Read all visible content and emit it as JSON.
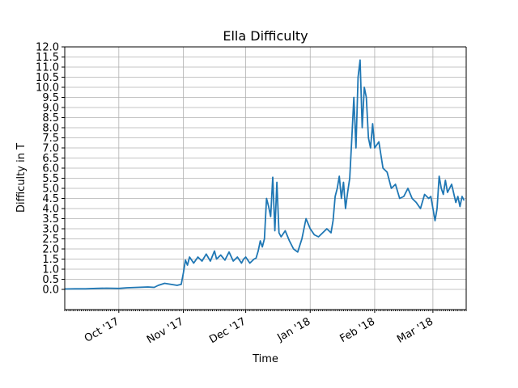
{
  "chart_data": {
    "type": "line",
    "title": "Ella Difficulty",
    "xlabel": "Time",
    "ylabel": "Difficulty in T",
    "ylim": [
      -1.0,
      12.0
    ],
    "xlim": [
      "2017-09-05",
      "2018-03-17"
    ],
    "y_ticks": [
      "0.0",
      "0.5",
      "1.0",
      "1.5",
      "2.0",
      "2.5",
      "3.0",
      "3.5",
      "4.0",
      "4.5",
      "5.0",
      "5.5",
      "6.0",
      "6.5",
      "7.0",
      "7.5",
      "8.0",
      "8.5",
      "9.0",
      "9.5",
      "10.0",
      "10.5",
      "11.0",
      "11.5",
      "12.0"
    ],
    "x_ticks": [
      {
        "date": "2017-10-01",
        "label": "Oct '17"
      },
      {
        "date": "2017-11-01",
        "label": "Nov '17"
      },
      {
        "date": "2017-12-01",
        "label": "Dec '17"
      },
      {
        "date": "2018-01-01",
        "label": "Jan '18"
      },
      {
        "date": "2018-02-01",
        "label": "Feb '18"
      },
      {
        "date": "2018-03-01",
        "label": "Mar '18"
      }
    ],
    "grid": true,
    "color": "#1f77b4",
    "series": [
      {
        "points": [
          [
            "2017-09-05",
            0.02
          ],
          [
            "2017-09-10",
            0.03
          ],
          [
            "2017-09-15",
            0.03
          ],
          [
            "2017-09-20",
            0.05
          ],
          [
            "2017-09-25",
            0.06
          ],
          [
            "2017-10-01",
            0.05
          ],
          [
            "2017-10-05",
            0.08
          ],
          [
            "2017-10-10",
            0.1
          ],
          [
            "2017-10-15",
            0.12
          ],
          [
            "2017-10-18",
            0.1
          ],
          [
            "2017-10-20",
            0.2
          ],
          [
            "2017-10-23",
            0.3
          ],
          [
            "2017-10-26",
            0.25
          ],
          [
            "2017-10-29",
            0.2
          ],
          [
            "2017-10-31",
            0.25
          ],
          [
            "2017-11-01",
            0.8
          ],
          [
            "2017-11-02",
            1.45
          ],
          [
            "2017-11-03",
            1.2
          ],
          [
            "2017-11-04",
            1.6
          ],
          [
            "2017-11-06",
            1.3
          ],
          [
            "2017-11-08",
            1.6
          ],
          [
            "2017-11-10",
            1.4
          ],
          [
            "2017-11-12",
            1.75
          ],
          [
            "2017-11-14",
            1.4
          ],
          [
            "2017-11-16",
            1.9
          ],
          [
            "2017-11-17",
            1.5
          ],
          [
            "2017-11-19",
            1.7
          ],
          [
            "2017-11-21",
            1.45
          ],
          [
            "2017-11-23",
            1.85
          ],
          [
            "2017-11-25",
            1.4
          ],
          [
            "2017-11-27",
            1.6
          ],
          [
            "2017-11-29",
            1.3
          ],
          [
            "2017-11-30",
            1.5
          ],
          [
            "2017-12-01",
            1.6
          ],
          [
            "2017-12-03",
            1.3
          ],
          [
            "2017-12-05",
            1.5
          ],
          [
            "2017-12-06",
            1.55
          ],
          [
            "2017-12-07",
            1.9
          ],
          [
            "2017-12-08",
            2.4
          ],
          [
            "2017-12-09",
            2.1
          ],
          [
            "2017-12-10",
            2.5
          ],
          [
            "2017-12-11",
            4.5
          ],
          [
            "2017-12-12",
            4.1
          ],
          [
            "2017-12-13",
            3.6
          ],
          [
            "2017-12-14",
            5.55
          ],
          [
            "2017-12-15",
            2.9
          ],
          [
            "2017-12-16",
            5.3
          ],
          [
            "2017-12-17",
            2.8
          ],
          [
            "2017-12-18",
            2.6
          ],
          [
            "2017-12-20",
            2.9
          ],
          [
            "2017-12-22",
            2.4
          ],
          [
            "2017-12-24",
            2.0
          ],
          [
            "2017-12-26",
            1.85
          ],
          [
            "2017-12-28",
            2.5
          ],
          [
            "2017-12-30",
            3.5
          ],
          [
            "2018-01-01",
            3.0
          ],
          [
            "2018-01-03",
            2.7
          ],
          [
            "2018-01-05",
            2.6
          ],
          [
            "2018-01-07",
            2.8
          ],
          [
            "2018-01-09",
            3.0
          ],
          [
            "2018-01-11",
            2.8
          ],
          [
            "2018-01-12",
            3.4
          ],
          [
            "2018-01-13",
            4.6
          ],
          [
            "2018-01-14",
            5.0
          ],
          [
            "2018-01-15",
            5.6
          ],
          [
            "2018-01-16",
            4.5
          ],
          [
            "2018-01-17",
            5.3
          ],
          [
            "2018-01-18",
            4.0
          ],
          [
            "2018-01-19",
            4.8
          ],
          [
            "2018-01-20",
            5.5
          ],
          [
            "2018-01-21",
            7.5
          ],
          [
            "2018-01-22",
            9.5
          ],
          [
            "2018-01-23",
            7.0
          ],
          [
            "2018-01-24",
            10.5
          ],
          [
            "2018-01-25",
            11.35
          ],
          [
            "2018-01-26",
            8.0
          ],
          [
            "2018-01-27",
            10.0
          ],
          [
            "2018-01-28",
            9.5
          ],
          [
            "2018-01-29",
            7.5
          ],
          [
            "2018-01-30",
            7.0
          ],
          [
            "2018-01-31",
            8.2
          ],
          [
            "2018-02-01",
            7.0
          ],
          [
            "2018-02-03",
            7.3
          ],
          [
            "2018-02-05",
            6.0
          ],
          [
            "2018-02-07",
            5.8
          ],
          [
            "2018-02-09",
            5.0
          ],
          [
            "2018-02-11",
            5.2
          ],
          [
            "2018-02-13",
            4.5
          ],
          [
            "2018-02-15",
            4.6
          ],
          [
            "2018-02-17",
            5.0
          ],
          [
            "2018-02-19",
            4.5
          ],
          [
            "2018-02-21",
            4.3
          ],
          [
            "2018-02-23",
            4.0
          ],
          [
            "2018-02-25",
            4.7
          ],
          [
            "2018-02-27",
            4.5
          ],
          [
            "2018-02-28",
            4.6
          ],
          [
            "2018-03-02",
            3.4
          ],
          [
            "2018-03-03",
            4.0
          ],
          [
            "2018-03-04",
            5.6
          ],
          [
            "2018-03-05",
            5.0
          ],
          [
            "2018-03-06",
            4.7
          ],
          [
            "2018-03-07",
            5.4
          ],
          [
            "2018-03-08",
            4.8
          ],
          [
            "2018-03-10",
            5.2
          ],
          [
            "2018-03-12",
            4.3
          ],
          [
            "2018-03-13",
            4.6
          ],
          [
            "2018-03-14",
            4.1
          ],
          [
            "2018-03-15",
            4.6
          ],
          [
            "2018-03-16",
            4.4
          ]
        ]
      }
    ]
  }
}
